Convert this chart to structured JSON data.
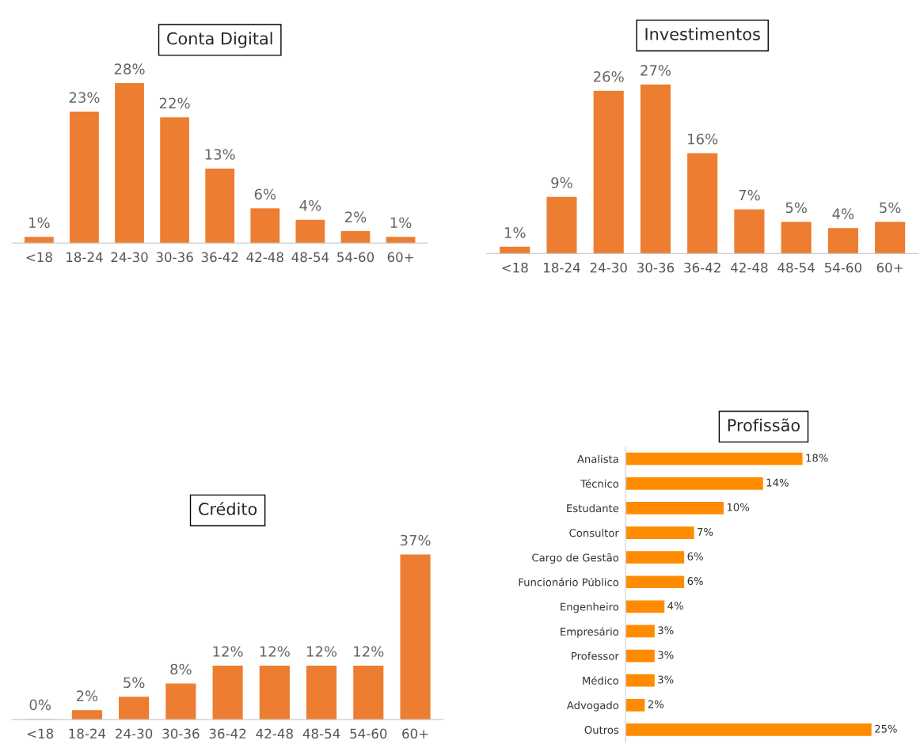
{
  "chart_data": [
    {
      "type": "bar",
      "title": "Conta Digital",
      "categories": [
        "<18",
        "18-24",
        "24-30",
        "30-36",
        "36-42",
        "42-48",
        "48-54",
        "54-60",
        "60+"
      ],
      "values": [
        1,
        23,
        28,
        22,
        13,
        6,
        4,
        2,
        1
      ],
      "value_labels": [
        "1%",
        "23%",
        "28%",
        "22%",
        "13%",
        "6%",
        "4%",
        "2%",
        "1%"
      ],
      "color": "#ed7d31"
    },
    {
      "type": "bar",
      "title": "Investimentos",
      "categories": [
        "<18",
        "18-24",
        "24-30",
        "30-36",
        "36-42",
        "42-48",
        "48-54",
        "54-60",
        "60+"
      ],
      "values": [
        1,
        9,
        26,
        27,
        16,
        7,
        5,
        4,
        5
      ],
      "value_labels": [
        "1%",
        "9%",
        "26%",
        "27%",
        "16%",
        "7%",
        "5%",
        "4%",
        "5%"
      ],
      "color": "#ed7d31"
    },
    {
      "type": "bar",
      "title": "Crédito",
      "categories": [
        "<18",
        "18-24",
        "24-30",
        "30-36",
        "36-42",
        "42-48",
        "48-54",
        "54-60",
        "60+"
      ],
      "values": [
        0,
        2,
        5,
        8,
        12,
        12,
        12,
        12,
        37
      ],
      "value_labels": [
        "0%",
        "2%",
        "5%",
        "8%",
        "12%",
        "12%",
        "12%",
        "12%",
        "37%"
      ],
      "color": "#ed7d31"
    },
    {
      "type": "bar",
      "orientation": "horizontal",
      "title": "Profissão",
      "categories": [
        "Analista",
        "Técnico",
        "Estudante",
        "Consultor",
        "Cargo de Gestão",
        "Funcionário Público",
        "Engenheiro",
        "Empresário",
        "Professor",
        "Médico",
        "Advogado",
        "Outros"
      ],
      "values": [
        18,
        14,
        10,
        7,
        6,
        6,
        4,
        3,
        3,
        3,
        2,
        25
      ],
      "value_labels": [
        "18%",
        "14%",
        "10%",
        "7%",
        "6%",
        "6%",
        "4%",
        "3%",
        "3%",
        "3%",
        "2%",
        "25%"
      ],
      "color": "#ff8c00"
    }
  ]
}
